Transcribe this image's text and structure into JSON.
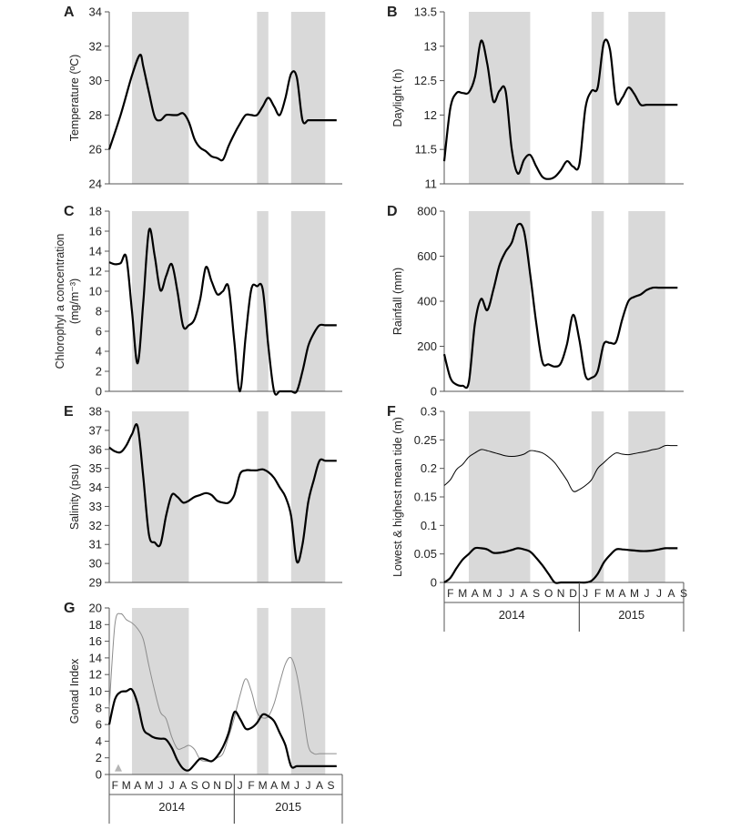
{
  "chart_data": [
    {
      "type": "line",
      "panel": "A",
      "ylabel": "Temperature (ºC)",
      "ylim": [
        24,
        34
      ],
      "yticks": [
        24,
        26,
        28,
        30,
        32,
        34
      ],
      "series": [
        {
          "color": "#000000",
          "style": "thick",
          "x": [
            0,
            1,
            2,
            2.7,
            3,
            3.5,
            4,
            4.5,
            5,
            5.5,
            6,
            6.5,
            7,
            7.5,
            8,
            8.5,
            9,
            9.5,
            10,
            10.5,
            11,
            11.5,
            12,
            12.5,
            13,
            13.5,
            14,
            14.5,
            15,
            15.5,
            16,
            16.5,
            17,
            17.5,
            18,
            18.5,
            19,
            19.5,
            20
          ],
          "y": [
            26,
            28,
            30.3,
            31.5,
            30.8,
            29.3,
            27.9,
            27.7,
            28,
            28,
            28,
            28.1,
            27.6,
            26.6,
            26.1,
            25.9,
            25.6,
            25.5,
            25.4,
            26.2,
            26.9,
            27.5,
            28,
            28,
            28,
            28.5,
            29,
            28.5,
            28,
            29,
            30.4,
            30.2,
            27.7,
            27.7,
            27.7,
            27.7,
            27.7,
            27.7,
            27.7
          ]
        }
      ],
      "shaded": [
        [
          2,
          7
        ],
        [
          13,
          14
        ],
        [
          16,
          19
        ]
      ]
    },
    {
      "type": "line",
      "panel": "B",
      "ylabel": "Daylight (h)",
      "ylim": [
        11,
        13.5
      ],
      "yticks": [
        "11",
        "11.5",
        "12",
        "12.5",
        "13",
        "13.5"
      ],
      "series": [
        {
          "color": "#000000",
          "style": "thick",
          "x": [
            0,
            0.5,
            1,
            1.5,
            2,
            2.5,
            3,
            3.5,
            4,
            4.5,
            5,
            5.5,
            6,
            6.5,
            7,
            7.5,
            8,
            8.5,
            9,
            9.5,
            10,
            10.5,
            11,
            11.5,
            12,
            12.5,
            13,
            13.5,
            14,
            14.5,
            15,
            15.5,
            16,
            16.5,
            17,
            17.5,
            18,
            18.5,
            19
          ],
          "y": [
            11.33,
            12.1,
            12.32,
            12.32,
            12.33,
            12.55,
            13.08,
            12.75,
            12.2,
            12.35,
            12.35,
            11.5,
            11.15,
            11.35,
            11.42,
            11.25,
            11.1,
            11.07,
            11.1,
            11.2,
            11.33,
            11.25,
            11.28,
            12.1,
            12.35,
            12.4,
            13.05,
            12.95,
            12.2,
            12.25,
            12.4,
            12.3,
            12.15,
            12.15,
            12.15,
            12.15,
            12.15,
            12.15,
            12.15
          ]
        }
      ],
      "shaded": [
        [
          2,
          7
        ],
        [
          12,
          13
        ],
        [
          15,
          18
        ]
      ]
    },
    {
      "type": "line",
      "panel": "C",
      "ylabel": "Chlorophyl a concentration (mg/m⁻³)",
      "ylim": [
        0,
        18
      ],
      "yticks": [
        0,
        2,
        4,
        6,
        8,
        10,
        12,
        14,
        16,
        18
      ],
      "series": [
        {
          "color": "#000000",
          "style": "thick",
          "x": [
            0,
            0.5,
            1,
            1.5,
            2,
            2.5,
            3,
            3.5,
            4,
            4.5,
            5,
            5.5,
            6,
            6.5,
            7,
            7.5,
            8,
            8.5,
            9,
            9.5,
            10,
            10.5,
            11,
            11.5,
            12,
            12.5,
            13,
            13.5,
            14,
            14.5,
            15,
            15.5,
            16,
            16.5,
            17,
            17.5,
            18,
            18.5,
            19,
            19.5,
            20
          ],
          "y": [
            12.9,
            12.7,
            12.8,
            13.4,
            8,
            2.8,
            9,
            16.1,
            13.5,
            10.1,
            11.5,
            12.7,
            10,
            6.5,
            6.6,
            7.2,
            9.2,
            12.4,
            11,
            9.7,
            10,
            10.4,
            5,
            0,
            5.5,
            10.2,
            10.5,
            10.2,
            4.5,
            0,
            0,
            0,
            0,
            0,
            2,
            4.5,
            5.8,
            6.6,
            6.6,
            6.6,
            6.6
          ]
        }
      ],
      "shaded": [
        [
          2,
          7
        ],
        [
          13,
          14
        ],
        [
          16,
          19
        ]
      ]
    },
    {
      "type": "line",
      "panel": "D",
      "ylabel": "Rainfall (mm)",
      "ylim": [
        0,
        800
      ],
      "yticks": [
        0,
        200,
        400,
        600,
        800
      ],
      "series": [
        {
          "color": "#000000",
          "style": "thick",
          "x": [
            0,
            0.5,
            1,
            1.5,
            2,
            2.5,
            3,
            3.5,
            4,
            4.5,
            5,
            5.5,
            6,
            6.5,
            7,
            7.5,
            8,
            8.5,
            9,
            9.5,
            10,
            10.5,
            11,
            11.5,
            12,
            12.5,
            13,
            13.5,
            14,
            14.5,
            15,
            15.5,
            16,
            16.5,
            17,
            17.5,
            18,
            18.5,
            19
          ],
          "y": [
            165,
            60,
            30,
            25,
            40,
            300,
            410,
            360,
            450,
            560,
            620,
            660,
            740,
            710,
            520,
            300,
            130,
            120,
            110,
            125,
            210,
            340,
            230,
            70,
            60,
            90,
            210,
            215,
            220,
            320,
            400,
            420,
            430,
            450,
            460,
            460,
            460,
            460,
            460
          ]
        }
      ],
      "shaded": [
        [
          2,
          7
        ],
        [
          12,
          13
        ],
        [
          15,
          18
        ]
      ]
    },
    {
      "type": "line",
      "panel": "E",
      "ylabel": "Salinity (psu)",
      "ylim": [
        29,
        38
      ],
      "yticks": [
        29,
        30,
        31,
        32,
        33,
        34,
        35,
        36,
        37,
        38
      ],
      "series": [
        {
          "color": "#000000",
          "style": "thick",
          "x": [
            0,
            0.5,
            1,
            1.5,
            2,
            2.5,
            3,
            3.5,
            4,
            4.5,
            5,
            5.5,
            6,
            6.5,
            7,
            7.5,
            8,
            8.5,
            9,
            9.5,
            10,
            10.5,
            11,
            11.5,
            12,
            12.5,
            13,
            13.5,
            14,
            14.5,
            15,
            15.5,
            16,
            16.5,
            17,
            17.5,
            18,
            18.5,
            19,
            19.5,
            20
          ],
          "y": [
            36.1,
            35.9,
            35.85,
            36.2,
            36.8,
            37.2,
            34.5,
            31.5,
            31.1,
            31,
            32.5,
            33.6,
            33.5,
            33.2,
            33.3,
            33.5,
            33.6,
            33.7,
            33.6,
            33.3,
            33.2,
            33.2,
            33.6,
            34.7,
            34.9,
            34.9,
            34.9,
            34.95,
            34.8,
            34.5,
            34,
            33.5,
            32.5,
            30.1,
            31,
            33.2,
            34.4,
            35.4,
            35.4,
            35.4,
            35.4
          ]
        }
      ],
      "shaded": [
        [
          2,
          7
        ],
        [
          13,
          14
        ],
        [
          16,
          19
        ]
      ]
    },
    {
      "type": "line",
      "panel": "F",
      "ylabel": "Lowest & highest mean tide (m)",
      "ylim": [
        0,
        0.3
      ],
      "yticks": [
        "0",
        "0.05",
        "0.1",
        "0.15",
        "0.2",
        "0.25",
        "0.3"
      ],
      "categories": [
        "F",
        "M",
        "A",
        "M",
        "J",
        "J",
        "A",
        "S",
        "O",
        "N",
        "D",
        "J",
        "F",
        "M",
        "A",
        "M",
        "J",
        "J",
        "A",
        "S"
      ],
      "years": [
        {
          "label": "2014",
          "span": [
            0,
            11
          ]
        },
        {
          "label": "2015",
          "span": [
            11,
            20
          ]
        }
      ],
      "series": [
        {
          "color": "#000000",
          "style": "thin",
          "x": [
            0,
            0.5,
            1,
            1.5,
            2,
            2.5,
            3,
            3.5,
            4,
            4.5,
            5,
            5.5,
            6,
            6.5,
            7,
            7.5,
            8,
            8.5,
            9,
            9.5,
            10,
            10.5,
            11,
            11.5,
            12,
            12.5,
            13,
            13.5,
            14,
            14.5,
            15,
            15.5,
            16,
            16.5,
            17,
            17.5,
            18,
            18.5,
            19
          ],
          "y": [
            0.17,
            0.18,
            0.198,
            0.207,
            0.22,
            0.227,
            0.233,
            0.231,
            0.228,
            0.225,
            0.222,
            0.221,
            0.222,
            0.225,
            0.231,
            0.23,
            0.227,
            0.22,
            0.21,
            0.195,
            0.179,
            0.16,
            0.163,
            0.17,
            0.18,
            0.2,
            0.21,
            0.22,
            0.227,
            0.225,
            0.224,
            0.226,
            0.228,
            0.23,
            0.233,
            0.235,
            0.24,
            0.24,
            0.24
          ]
        },
        {
          "color": "#000000",
          "style": "thick",
          "x": [
            0,
            0.5,
            1,
            1.5,
            2,
            2.5,
            3,
            3.5,
            4,
            4.5,
            5,
            5.5,
            6,
            6.5,
            7,
            7.5,
            8,
            8.5,
            9,
            9.5,
            10,
            10.5,
            11,
            11.5,
            12,
            12.5,
            13,
            13.5,
            14,
            14.5,
            15,
            15.5,
            16,
            16.5,
            17,
            17.5,
            18,
            18.5,
            19
          ],
          "y": [
            0,
            0.008,
            0.025,
            0.04,
            0.05,
            0.06,
            0.06,
            0.058,
            0.052,
            0.052,
            0.054,
            0.057,
            0.06,
            0.058,
            0.054,
            0.043,
            0.03,
            0.015,
            0,
            0,
            0,
            0,
            0,
            0,
            0.003,
            0.015,
            0.035,
            0.048,
            0.058,
            0.058,
            0.057,
            0.056,
            0.055,
            0.055,
            0.056,
            0.058,
            0.06,
            0.06,
            0.06
          ]
        }
      ],
      "shaded": [
        [
          2,
          7
        ],
        [
          12,
          13
        ],
        [
          15,
          18
        ]
      ]
    },
    {
      "type": "line",
      "panel": "G",
      "ylabel": "Gonad Index",
      "ylim": [
        0,
        20
      ],
      "yticks": [
        0,
        2,
        4,
        6,
        8,
        10,
        12,
        14,
        16,
        18,
        20
      ],
      "categories": [
        "F",
        "M",
        "A",
        "M",
        "J",
        "J",
        "A",
        "S",
        "O",
        "N",
        "D",
        "J",
        "F",
        "M",
        "A",
        "M",
        "J",
        "J",
        "A",
        "S"
      ],
      "years": [
        {
          "label": "2014",
          "span": [
            0,
            11
          ]
        },
        {
          "label": "2015",
          "span": [
            11,
            20
          ]
        }
      ],
      "series": [
        {
          "color": "#8c8c8c",
          "style": "thin",
          "x": [
            0,
            0.5,
            1,
            1.5,
            2,
            2.5,
            3,
            3.5,
            4,
            4.5,
            5,
            5.5,
            6,
            6.5,
            7,
            7.5,
            8,
            8.5,
            9,
            9.5,
            10,
            10.5,
            11,
            11.5,
            12,
            12.5,
            13,
            13.5,
            14,
            14.5,
            15,
            15.5,
            16,
            16.5,
            17,
            17.5,
            18,
            18.5,
            19,
            19.5,
            20
          ],
          "y": [
            8,
            18,
            19.3,
            18.6,
            18.2,
            17.5,
            16.2,
            13,
            10,
            7.5,
            6.7,
            4.5,
            3.1,
            3.2,
            3.5,
            3,
            1.8,
            1.6,
            1.6,
            2,
            2.5,
            4.5,
            6.8,
            9.5,
            11.5,
            10,
            7.5,
            6.8,
            7,
            8.5,
            11,
            13.3,
            14,
            12,
            8,
            3.5,
            2.5,
            2.5,
            2.5,
            2.5,
            2.5
          ]
        },
        {
          "color": "#000000",
          "style": "thick",
          "x": [
            0,
            0.5,
            1,
            1.5,
            2,
            2.5,
            3,
            3.5,
            4,
            4.5,
            5,
            5.5,
            6,
            6.5,
            7,
            7.5,
            8,
            8.5,
            9,
            9.5,
            10,
            10.5,
            11,
            11.5,
            12,
            12.5,
            13,
            13.5,
            14,
            14.5,
            15,
            15.5,
            16,
            16.5,
            17,
            17.5,
            18,
            18.5,
            19,
            19.5,
            20
          ],
          "y": [
            6,
            9,
            9.9,
            10,
            10.2,
            8.5,
            5.5,
            4.8,
            4.4,
            4.3,
            4.2,
            3.2,
            1.7,
            0.7,
            0.5,
            1.2,
            1.9,
            1.8,
            1.6,
            2.2,
            3.3,
            5,
            7.5,
            6.7,
            5.5,
            5.6,
            6.2,
            7.2,
            7,
            6.4,
            5,
            3.5,
            1,
            1,
            1,
            1,
            1,
            1,
            1,
            1,
            1
          ]
        }
      ],
      "shaded": [
        [
          2,
          7
        ],
        [
          13,
          14
        ],
        [
          16,
          19
        ]
      ],
      "marker": {
        "color": "#b5b5b5",
        "shape": "triangle",
        "x": 0,
        "y": 0.8
      }
    }
  ]
}
